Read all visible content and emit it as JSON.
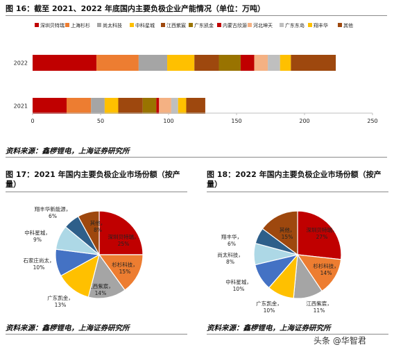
{
  "fig16": {
    "title": "图 16：截至 2021、2022 年底国内主要负极企业产能情况（单位：万吨）",
    "source": "资料来源：鑫椤锂电，上海证券研究所"
  },
  "fig17": {
    "title_line1": "图 17：2021 年国内主要负极企业市场份额（按产",
    "title_line2": "量）",
    "source": "资料来源：鑫椤锂电，上海证券研究所"
  },
  "fig18": {
    "title_line1": "图 18：2022 年国内主要负极企业市场份额（按产",
    "title_line2": "量）",
    "source": "资料来源：鑫椤锂电，上海证券研究所"
  },
  "watermark": "头条 @华智君",
  "colors": {
    "深圳贝特瑞": "#c00000",
    "上海杉杉": "#ed7d31",
    "尚太科技": "#a5a5a5",
    "中科星城": "#ffc000",
    "江西紫宸": "#9e480e",
    "广东凯金": "#997300",
    "内蒙古欣源": "#c00000",
    "河北坤天": "#f4b183",
    "广东东岛": "#bfbfbf",
    "翔丰华": "#ffc000",
    "其他": "#9e480e"
  },
  "chart_data": [
    {
      "type": "bar",
      "orientation": "horizontal",
      "stacked": true,
      "categories": [
        "2022",
        "2021"
      ],
      "series": [
        {
          "name": "深圳贝特瑞",
          "values": [
            47,
            25
          ]
        },
        {
          "name": "上海杉杉",
          "values": [
            31,
            18
          ]
        },
        {
          "name": "尚太科技",
          "values": [
            21,
            10
          ]
        },
        {
          "name": "中科星城",
          "values": [
            20,
            10
          ]
        },
        {
          "name": "江西紫宸",
          "values": [
            18,
            18
          ]
        },
        {
          "name": "广东凯金",
          "values": [
            16,
            10
          ]
        },
        {
          "name": "内蒙古欣源",
          "values": [
            10,
            2
          ]
        },
        {
          "name": "河北坤天",
          "values": [
            10,
            9
          ]
        },
        {
          "name": "广东东岛",
          "values": [
            9,
            5
          ]
        },
        {
          "name": "翔丰华",
          "values": [
            8,
            6
          ]
        },
        {
          "name": "其他",
          "values": [
            33,
            14
          ]
        }
      ],
      "xlim": [
        0,
        250
      ],
      "xticks": [
        0,
        50,
        100,
        150,
        200,
        250
      ],
      "legend": "top"
    },
    {
      "type": "pie",
      "slices": [
        {
          "name": "深圳贝特瑞",
          "value": 25,
          "label": "深圳贝特瑞，25%",
          "color": "#c00000"
        },
        {
          "name": "杉杉科技",
          "value": 15,
          "label": "杉杉科技，15%",
          "color": "#ed7d31"
        },
        {
          "name": "江西紫宸",
          "value": 14,
          "label": "江西紫宸，14%",
          "color": "#a5a5a5"
        },
        {
          "name": "广东凯金",
          "value": 13,
          "label": "广东凯金，13%",
          "color": "#ffc000"
        },
        {
          "name": "石家庄尚太",
          "value": 10,
          "label": "石家庄尚太，10%",
          "color": "#4472c4"
        },
        {
          "name": "中科星城",
          "value": 9,
          "label": "中科星城，9%",
          "color": "#add8e6"
        },
        {
          "name": "翔丰华新能源",
          "value": 6,
          "label": "翔丰华新能源，6%",
          "color": "#2e5f8a"
        },
        {
          "name": "其他",
          "value": 8,
          "label": "其他，8%",
          "color": "#9e480e"
        }
      ]
    },
    {
      "type": "pie",
      "slices": [
        {
          "name": "深圳贝特瑞",
          "value": 27,
          "label": "深圳贝特瑞，27%",
          "color": "#c00000"
        },
        {
          "name": "杉杉科技",
          "value": 14,
          "label": "杉杉科技，14%",
          "color": "#ed7d31"
        },
        {
          "name": "江西紫宸",
          "value": 11,
          "label": "江西紫宸，11%",
          "color": "#a5a5a5"
        },
        {
          "name": "广东凯金",
          "value": 10,
          "label": "广东凯金，10%",
          "color": "#ffc000"
        },
        {
          "name": "中科星城",
          "value": 10,
          "label": "中科星城，10%",
          "color": "#4472c4"
        },
        {
          "name": "尚太科技",
          "value": 8,
          "label": "尚太科技，8%",
          "color": "#add8e6"
        },
        {
          "name": "翔丰华",
          "value": 6,
          "label": "翔丰华，6%",
          "color": "#2e5f8a"
        },
        {
          "name": "其他",
          "value": 15,
          "label": "其他，15%",
          "color": "#9e480e"
        }
      ]
    }
  ]
}
